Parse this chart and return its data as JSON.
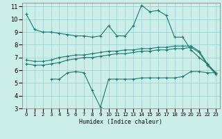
{
  "xlabel": "Humidex (Indice chaleur)",
  "background_color": "#cceee8",
  "grid_color": "#99cccc",
  "line_color": "#1a7a6e",
  "xlim": [
    -0.5,
    23.5
  ],
  "ylim": [
    3,
    11.3
  ],
  "yticks": [
    3,
    4,
    5,
    6,
    7,
    8,
    9,
    10,
    11
  ],
  "xticks": [
    0,
    1,
    2,
    3,
    4,
    5,
    6,
    7,
    8,
    9,
    10,
    11,
    12,
    13,
    14,
    15,
    16,
    17,
    18,
    19,
    20,
    21,
    22,
    23
  ],
  "line1_x": [
    0,
    1,
    2,
    3,
    4,
    5,
    6,
    7,
    8,
    9,
    10,
    11,
    12,
    13,
    14,
    15,
    16,
    17,
    18,
    19,
    20,
    21,
    22,
    23
  ],
  "line1_y": [
    10.4,
    9.2,
    9.0,
    9.0,
    8.9,
    8.8,
    8.7,
    8.7,
    8.6,
    8.7,
    9.5,
    8.7,
    8.7,
    9.5,
    11.1,
    10.6,
    10.7,
    10.3,
    8.6,
    8.6,
    7.6,
    7.0,
    6.5,
    5.8
  ],
  "line2_x": [
    0,
    1,
    2,
    3,
    4,
    5,
    6,
    7,
    8,
    9,
    10,
    11,
    12,
    13,
    14,
    15,
    16,
    17,
    18,
    19,
    20,
    21,
    22,
    23
  ],
  "line2_y": [
    6.8,
    6.7,
    6.7,
    6.8,
    7.0,
    7.1,
    7.2,
    7.2,
    7.3,
    7.4,
    7.5,
    7.5,
    7.6,
    7.6,
    7.7,
    7.7,
    7.8,
    7.8,
    7.9,
    7.9,
    7.9,
    7.5,
    6.5,
    5.8
  ],
  "line3_x": [
    0,
    1,
    2,
    3,
    4,
    5,
    6,
    7,
    8,
    9,
    10,
    11,
    12,
    13,
    14,
    15,
    16,
    17,
    18,
    19,
    20,
    21,
    22,
    23
  ],
  "line3_y": [
    6.5,
    6.4,
    6.4,
    6.5,
    6.6,
    6.8,
    6.9,
    7.0,
    7.0,
    7.1,
    7.2,
    7.3,
    7.3,
    7.4,
    7.5,
    7.5,
    7.6,
    7.6,
    7.7,
    7.7,
    7.8,
    7.4,
    6.4,
    5.7
  ],
  "line4_x": [
    3,
    4,
    5,
    6,
    7,
    8,
    9,
    10,
    11,
    12,
    13,
    14,
    15,
    16,
    17,
    18,
    19,
    20,
    21,
    22,
    23
  ],
  "line4_y": [
    5.3,
    5.3,
    5.8,
    5.9,
    5.8,
    4.4,
    3.1,
    5.3,
    5.3,
    5.3,
    5.3,
    5.4,
    5.4,
    5.4,
    5.4,
    5.4,
    5.5,
    5.9,
    5.9,
    5.8,
    5.8
  ]
}
